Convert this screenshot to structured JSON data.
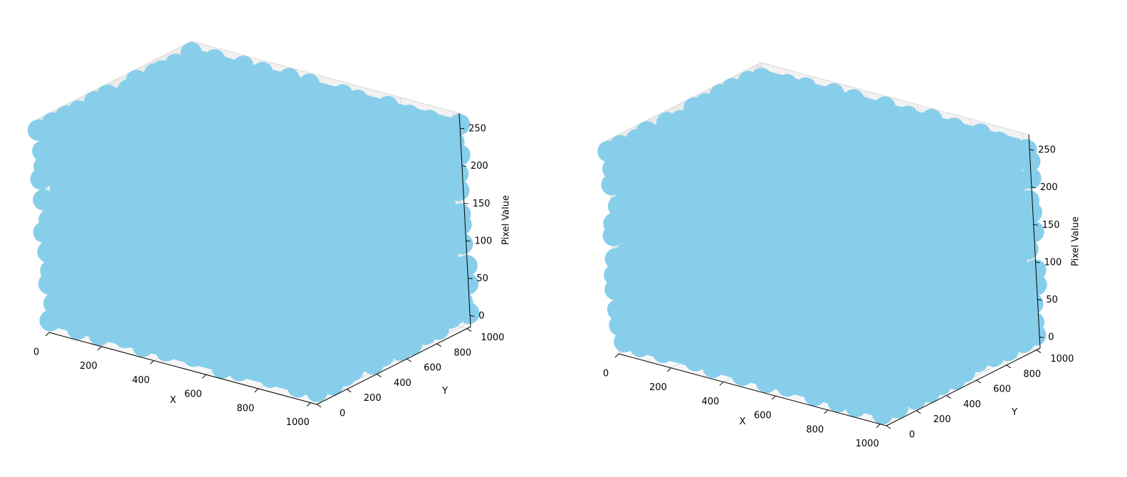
{
  "chart_data": [
    {
      "type": "scatter3d",
      "title": "",
      "xlabel": "X",
      "ylabel": "Y",
      "zlabel": "Pixel Value",
      "xlim": [
        0,
        1024
      ],
      "ylim": [
        0,
        1024
      ],
      "zlim": [
        -15,
        270
      ],
      "xticks": [
        0,
        200,
        400,
        600,
        800,
        1000
      ],
      "yticks": [
        0,
        200,
        400,
        600,
        800,
        1000
      ],
      "zticks": [
        0,
        50,
        100,
        150,
        200,
        250
      ],
      "grid": true,
      "marker_color": "#87CEEB",
      "points_description_ranges": {
        "x": [
          0,
          1023
        ],
        "y": [
          0,
          1023
        ],
        "z": [
          0,
          255
        ]
      }
    },
    {
      "type": "scatter3d",
      "title": "",
      "xlabel": "X",
      "ylabel": "Y",
      "zlabel": "Pixel Value",
      "xlim": [
        0,
        1024
      ],
      "ylim": [
        0,
        1024
      ],
      "zlim": [
        -15,
        270
      ],
      "xticks": [
        0,
        200,
        400,
        600,
        800,
        1000
      ],
      "yticks": [
        0,
        200,
        400,
        600,
        800,
        1000
      ],
      "zticks": [
        0,
        50,
        100,
        150,
        200,
        250
      ],
      "grid": true,
      "marker_color": "#87CEEB",
      "points_description_ranges": {
        "x": [
          0,
          1023
        ],
        "y": [
          0,
          1023
        ],
        "z": [
          0,
          255
        ]
      }
    }
  ],
  "colors": {
    "pane_left": "#ebebeb",
    "pane_right": "#f2f2f2",
    "pane_floor": "#f7f7f7",
    "grid": "#d0d0d0",
    "points": "#87CEEB"
  }
}
